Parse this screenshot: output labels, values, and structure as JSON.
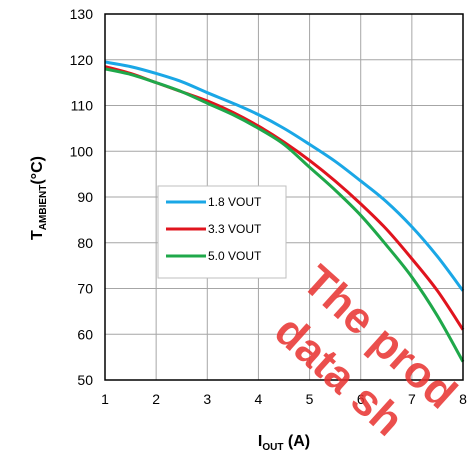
{
  "chart_data": {
    "type": "line",
    "x": [
      1,
      1.5,
      2,
      2.5,
      3,
      3.5,
      4,
      4.5,
      5,
      5.5,
      6,
      6.5,
      7,
      7.5,
      8
    ],
    "xlim": [
      1,
      8
    ],
    "ylim": [
      50,
      130
    ],
    "x_ticks": [
      "1",
      "2",
      "3",
      "4",
      "5",
      "6",
      "7",
      "8"
    ],
    "y_ticks": [
      "50",
      "60",
      "70",
      "80",
      "90",
      "100",
      "110",
      "120",
      "130"
    ],
    "xlabel": {
      "main": "I",
      "sub": "OUT",
      "rest": " (A)"
    },
    "ylabel": {
      "main": "T",
      "sub": "AMBIENT",
      "rest": "(°C)"
    },
    "grid": true,
    "legend_placement": "left-center",
    "series": [
      {
        "name": "1.8 VOUT",
        "color": "#1aa7e6",
        "values": [
          119.5,
          118.5,
          117,
          115.2,
          112.8,
          110.5,
          108,
          105,
          101.5,
          97.8,
          93.5,
          89,
          83.5,
          77,
          69.5
        ]
      },
      {
        "name": "3.3 VOUT",
        "color": "#e0141e",
        "values": [
          118.5,
          117,
          115,
          113,
          111,
          108.5,
          105.5,
          102,
          98,
          93.5,
          88.5,
          83,
          76.5,
          69.5,
          61
        ]
      },
      {
        "name": "5.0 VOUT",
        "color": "#1fa84a",
        "values": [
          118,
          116.8,
          115,
          113,
          110.5,
          108,
          105,
          101.5,
          96.5,
          91.5,
          86,
          79.5,
          72.5,
          64,
          54
        ]
      }
    ],
    "watermark": [
      "The prod",
      "data sh"
    ]
  }
}
